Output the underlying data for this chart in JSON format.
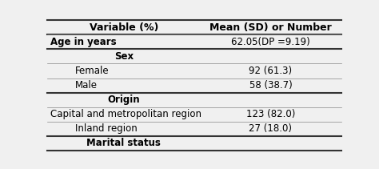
{
  "col1_header": "Variable (%)",
  "col2_header": "Mean (SD) or Number",
  "rows": [
    {
      "label": "Age in years",
      "value": "62.05(DP =9.19)",
      "bold": true,
      "indent": false,
      "header": false
    },
    {
      "label": "Sex",
      "value": "",
      "bold": true,
      "indent": false,
      "header": true
    },
    {
      "label": "Female",
      "value": "92 (61.3)",
      "bold": false,
      "indent": true,
      "header": false
    },
    {
      "label": "Male",
      "value": "58 (38.7)",
      "bold": false,
      "indent": true,
      "header": false
    },
    {
      "label": "Origin",
      "value": "",
      "bold": true,
      "indent": false,
      "header": true
    },
    {
      "label": "Capital and metropolitan region",
      "value": "123 (82.0)",
      "bold": false,
      "indent": false,
      "header": false
    },
    {
      "label": "Inland region",
      "value": "27 (18.0)",
      "bold": false,
      "indent": true,
      "header": false
    },
    {
      "label": "Marital status",
      "value": "",
      "bold": true,
      "indent": false,
      "header": true
    }
  ],
  "bg_color": "#f0f0f0",
  "table_bg": "#ffffff",
  "font_size": 8.5,
  "header_font_size": 9,
  "col_split": 0.52
}
